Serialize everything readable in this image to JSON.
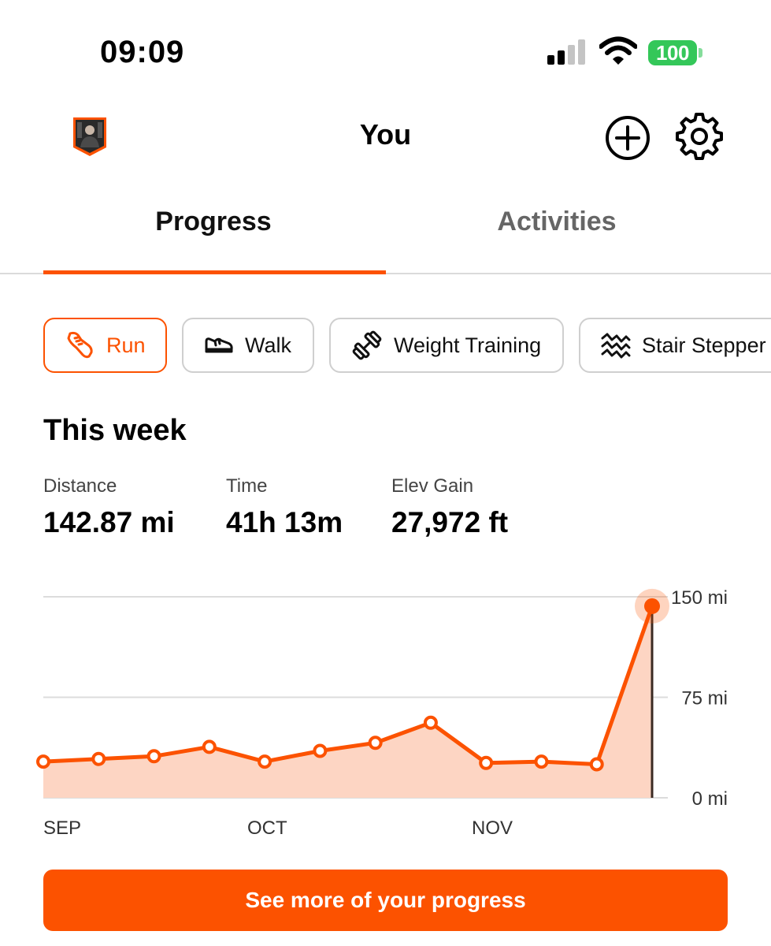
{
  "status_bar": {
    "time": "09:09",
    "battery": "100"
  },
  "header": {
    "title": "You",
    "avatar": "avatar",
    "add_icon": "plus-circle-icon",
    "settings_icon": "gear-icon"
  },
  "tabs": [
    {
      "label": "Progress",
      "active": true
    },
    {
      "label": "Activities",
      "active": false
    }
  ],
  "sport_filters": [
    {
      "label": "Run",
      "icon": "running-shoe-icon",
      "selected": true
    },
    {
      "label": "Walk",
      "icon": "walking-shoe-icon",
      "selected": false
    },
    {
      "label": "Weight Training",
      "icon": "dumbbell-icon",
      "selected": false
    },
    {
      "label": "Stair Stepper",
      "icon": "stair-stepper-icon",
      "selected": false
    }
  ],
  "this_week": {
    "title": "This week",
    "stats": [
      {
        "label": "Distance",
        "value": "142.87 mi"
      },
      {
        "label": "Time",
        "value": "41h 13m"
      },
      {
        "label": "Elev Gain",
        "value": "27,972 ft"
      }
    ]
  },
  "chart_data": {
    "type": "area",
    "x_labels": [
      "SEP",
      "OCT",
      "NOV"
    ],
    "y_ticks": [
      "150 mi",
      "75 mi",
      "0 mi"
    ],
    "ylim": [
      0,
      150
    ],
    "values": [
      27,
      29,
      31,
      38,
      27,
      35,
      41,
      56,
      26,
      27,
      25,
      143
    ],
    "highlighted_index": 11,
    "colors": {
      "line": "#fc5200",
      "fill": "#fdd5c3",
      "grid": "#dcdcdc"
    }
  },
  "cta": {
    "label": "See more of your progress"
  },
  "colors": {
    "accent": "#fc5200"
  }
}
